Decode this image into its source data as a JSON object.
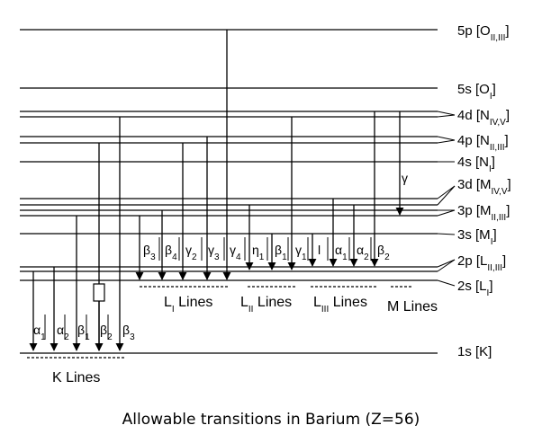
{
  "caption": "Allowable transitions in Barium (Z=56)",
  "levels": [
    {
      "main": "5p [O",
      "sub": "II,III",
      "tail": "]"
    },
    {
      "main": "5s [O",
      "sub": "I",
      "tail": "]"
    },
    {
      "main": "4d [N",
      "sub": "IV,V",
      "tail": "]"
    },
    {
      "main": "4p [N",
      "sub": "II,III",
      "tail": "]"
    },
    {
      "main": "4s [N",
      "sub": "I",
      "tail": "]"
    },
    {
      "main": "3d [M",
      "sub": "IV,V",
      "tail": "]"
    },
    {
      "main": "3p [M",
      "sub": "II,III",
      "tail": "]"
    },
    {
      "main": "3s [M",
      "sub": "I",
      "tail": "]"
    },
    {
      "main": "2p [L",
      "sub": "II,III",
      "tail": "]"
    },
    {
      "main": "2s [L",
      "sub": "I",
      "tail": "]"
    },
    {
      "main": "1s [K]",
      "sub": "",
      "tail": ""
    }
  ],
  "k_transitions": [
    {
      "sym": "α",
      "sub": "1"
    },
    {
      "sym": "α",
      "sub": "2"
    },
    {
      "sym": "β",
      "sub": "1"
    },
    {
      "sym": "β",
      "sub": "2"
    },
    {
      "sym": "β",
      "sub": "3"
    }
  ],
  "l_transitions": [
    {
      "sym": "β",
      "sub": "3"
    },
    {
      "sym": "β",
      "sub": "4"
    },
    {
      "sym": "γ",
      "sub": "2"
    },
    {
      "sym": "γ",
      "sub": "3"
    },
    {
      "sym": "γ",
      "sub": "4"
    },
    {
      "sym": "η",
      "sub": "1"
    },
    {
      "sym": "β",
      "sub": "1"
    },
    {
      "sym": "γ",
      "sub": "1"
    },
    {
      "sym": "l",
      "sub": ""
    },
    {
      "sym": "α",
      "sub": "1"
    },
    {
      "sym": "α",
      "sub": "2"
    },
    {
      "sym": "β",
      "sub": "2"
    }
  ],
  "m_transition": {
    "sym": "γ",
    "sub": ""
  },
  "groups": {
    "k": {
      "main": "K Lines",
      "sub": "",
      "tail": ""
    },
    "l1": {
      "main": "L",
      "sub": "I",
      "tail": " Lines"
    },
    "l2": {
      "main": "L",
      "sub": "II",
      "tail": " Lines"
    },
    "l3": {
      "main": "L",
      "sub": "III",
      "tail": " Lines"
    },
    "m": {
      "main": "M Lines",
      "sub": "",
      "tail": ""
    }
  }
}
